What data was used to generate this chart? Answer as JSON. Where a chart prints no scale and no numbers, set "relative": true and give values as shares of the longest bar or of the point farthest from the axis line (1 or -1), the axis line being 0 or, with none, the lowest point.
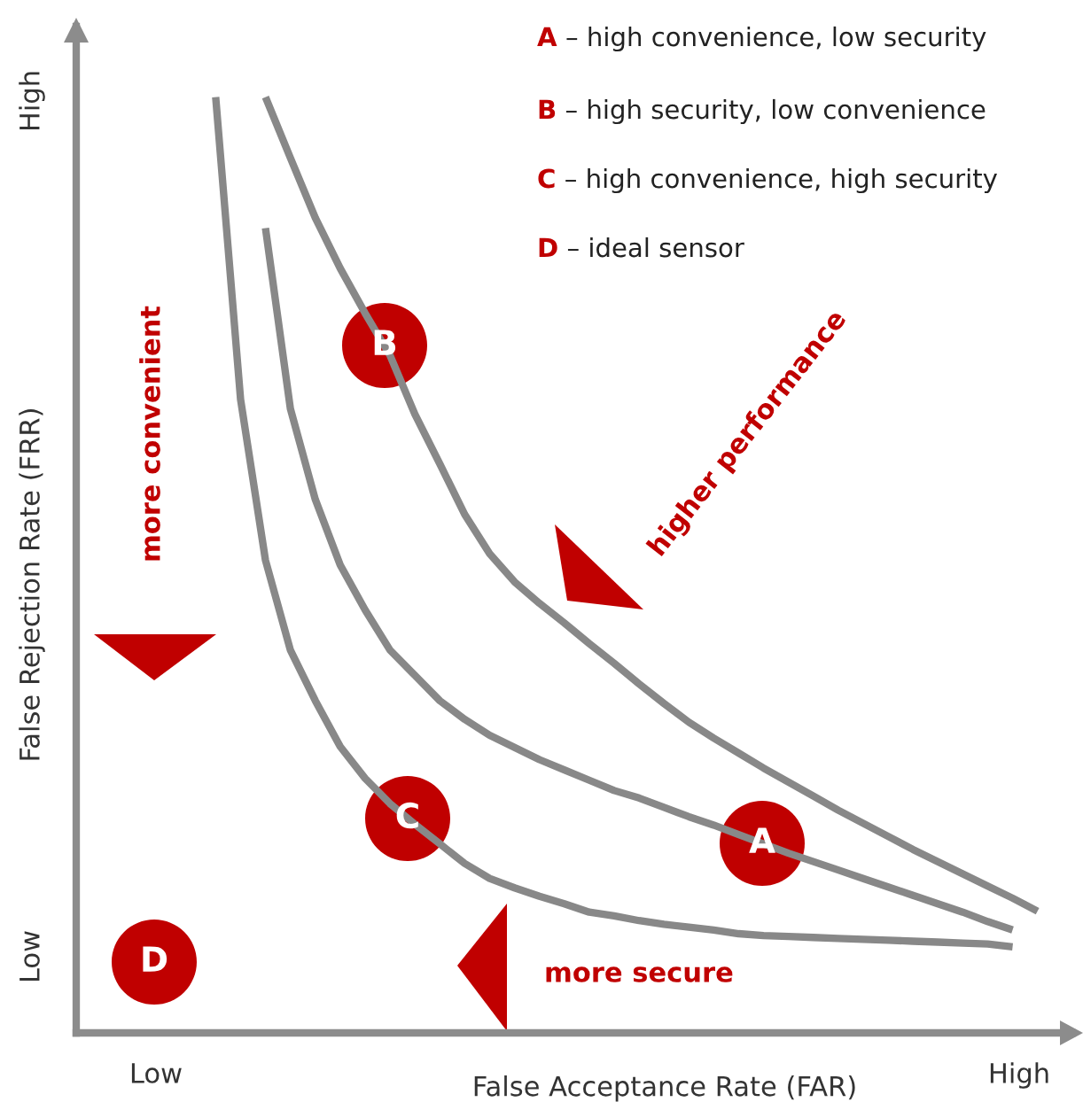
{
  "chart_data": {
    "type": "line",
    "relative": true,
    "xlabel": "False Acceptance Rate (FAR)",
    "categories": [
      null,
      null,
      null,
      null,
      null,
      null,
      null,
      null,
      null,
      null,
      null,
      null,
      null,
      null,
      null,
      null,
      null,
      null,
      null,
      null,
      null,
      null,
      null,
      null,
      null,
      null,
      null,
      null,
      null,
      null,
      null,
      null,
      null,
      null
    ],
    "series": [
      {
        "color": "#888888",
        "values": [
          1.0,
          0.677,
          0.505,
          0.409,
          0.355,
          0.306,
          0.272,
          0.245,
          0.223,
          0.202,
          0.181,
          0.165,
          0.155,
          0.146,
          0.138,
          0.129,
          0.125,
          0.12,
          0.116,
          0.113,
          0.11,
          0.106,
          0.104,
          0.103,
          0.102,
          0.101,
          0.1,
          0.099,
          0.098,
          0.097,
          0.096,
          0.095,
          0.092,
          null
        ]
      },
      {
        "color": "#888888",
        "values": [
          null,
          null,
          0.86,
          0.667,
          0.57,
          0.5,
          0.452,
          0.409,
          0.382,
          0.355,
          0.335,
          0.318,
          0.305,
          0.292,
          0.281,
          0.27,
          0.259,
          0.251,
          0.241,
          0.231,
          0.222,
          0.212,
          0.202,
          0.192,
          0.183,
          0.174,
          0.165,
          0.156,
          0.147,
          0.138,
          0.129,
          0.119,
          0.11,
          null
        ]
      },
      {
        "color": "#888888",
        "values": [
          null,
          null,
          1.0,
          0.935,
          0.871,
          0.817,
          0.769,
          0.724,
          0.661,
          0.608,
          0.554,
          0.512,
          0.482,
          0.459,
          0.438,
          0.416,
          0.395,
          0.373,
          0.352,
          0.332,
          0.315,
          0.299,
          0.283,
          0.268,
          0.253,
          0.238,
          0.224,
          0.21,
          0.196,
          0.183,
          0.17,
          0.157,
          0.144,
          0.13
        ]
      }
    ],
    "annotations": [
      "A",
      "B",
      "C",
      "D",
      "A – high convenience, low security",
      "B – high security, low convenience",
      "C – high convenience, high security",
      "D – ideal sensor",
      "more convenient",
      "higher performance",
      "more secure",
      "Low",
      "High",
      "Low",
      "High",
      "False Rejection Rate (FRR)"
    ]
  }
}
